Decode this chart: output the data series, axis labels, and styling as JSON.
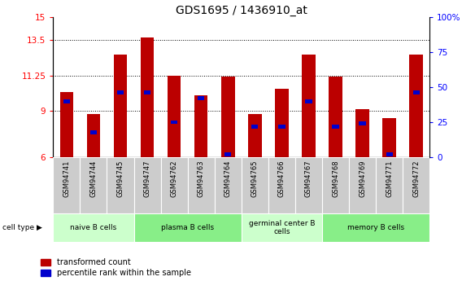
{
  "title": "GDS1695 / 1436910_at",
  "samples": [
    "GSM94741",
    "GSM94744",
    "GSM94745",
    "GSM94747",
    "GSM94762",
    "GSM94763",
    "GSM94764",
    "GSM94765",
    "GSM94766",
    "GSM94767",
    "GSM94768",
    "GSM94769",
    "GSM94771",
    "GSM94772"
  ],
  "transformed_count": [
    10.2,
    8.75,
    12.6,
    13.7,
    11.25,
    10.0,
    11.2,
    8.75,
    10.4,
    12.6,
    11.2,
    9.1,
    8.5,
    12.6
  ],
  "percentile_rank": [
    40,
    18,
    46,
    46,
    25,
    42,
    2,
    22,
    22,
    40,
    22,
    24,
    2,
    46
  ],
  "ylim_left": [
    6,
    15
  ],
  "ylim_right": [
    0,
    100
  ],
  "yticks_left": [
    6,
    9,
    11.25,
    13.5,
    15
  ],
  "ytick_labels_left": [
    "6",
    "9",
    "11.25",
    "13.5",
    "15"
  ],
  "yticks_right": [
    0,
    25,
    50,
    75,
    100
  ],
  "ytick_labels_right": [
    "0",
    "25",
    "50",
    "75",
    "100%"
  ],
  "bar_color_red": "#bb0000",
  "bar_color_blue": "#0000cc",
  "bar_width": 0.5,
  "blue_bar_width": 0.25,
  "groups": [
    {
      "label": "naive B cells",
      "start": 0,
      "end": 3,
      "color": "#ccffcc"
    },
    {
      "label": "plasma B cells",
      "start": 3,
      "end": 7,
      "color": "#88ee88"
    },
    {
      "label": "germinal center B\ncells",
      "start": 7,
      "end": 10,
      "color": "#ccffcc"
    },
    {
      "label": "memory B cells",
      "start": 10,
      "end": 14,
      "color": "#88ee88"
    }
  ],
  "legend_items": [
    {
      "label": "transformed count",
      "color": "#bb0000"
    },
    {
      "label": "percentile rank within the sample",
      "color": "#0000cc"
    }
  ],
  "cell_type_label": "cell type",
  "background_color": "#ffffff",
  "sample_label_bg": "#cccccc",
  "dotted_lines": [
    9,
    11.25,
    13.5
  ]
}
